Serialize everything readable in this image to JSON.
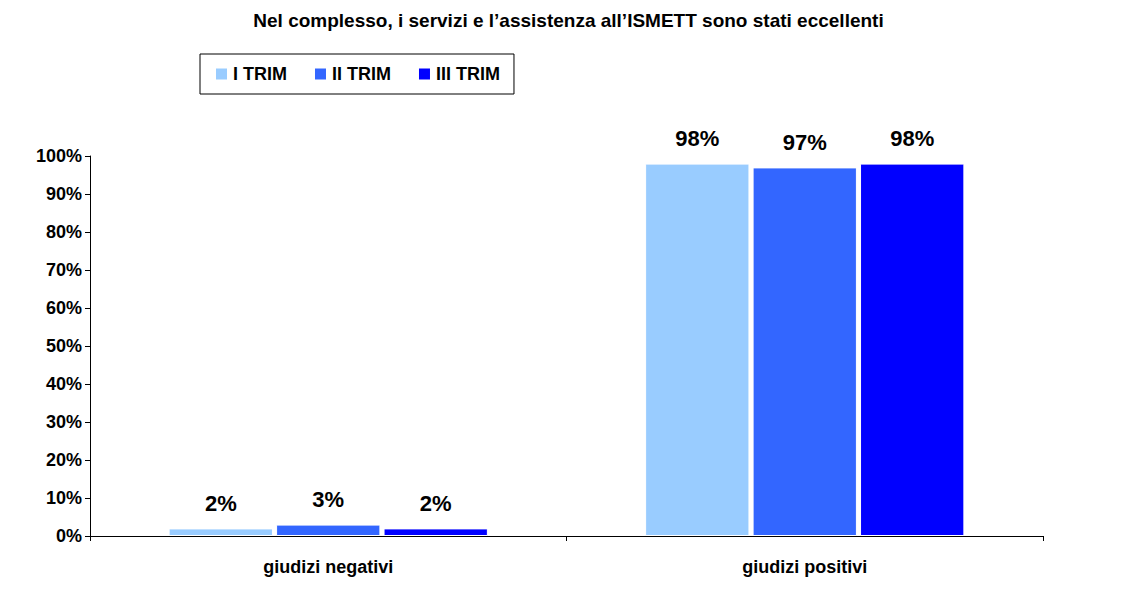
{
  "chart_data": {
    "type": "bar",
    "title": "Nel complesso, i servizi e l’assistenza all’ISMETT sono stati eccellenti",
    "categories": [
      "giudizi negativi",
      "giudizi positivi"
    ],
    "series": [
      {
        "name": "I TRIM",
        "color": "#99ccff",
        "values": [
          2,
          98
        ],
        "value_labels": [
          "2%",
          "98%"
        ]
      },
      {
        "name": "II TRIM",
        "color": "#3366ff",
        "values": [
          3,
          97
        ],
        "value_labels": [
          "3%",
          "97%"
        ]
      },
      {
        "name": "III TRIM",
        "color": "#0000ff",
        "values": [
          2,
          98
        ],
        "value_labels": [
          "2%",
          "98%"
        ]
      }
    ],
    "ylim": [
      0,
      100
    ],
    "yticks": [
      {
        "value": 0,
        "label": "0%"
      },
      {
        "value": 10,
        "label": "10%"
      },
      {
        "value": 20,
        "label": "20%"
      },
      {
        "value": 30,
        "label": "30%"
      },
      {
        "value": 40,
        "label": "40%"
      },
      {
        "value": 50,
        "label": "50%"
      },
      {
        "value": 60,
        "label": "60%"
      },
      {
        "value": 70,
        "label": "70%"
      },
      {
        "value": 80,
        "label": "80%"
      },
      {
        "value": 90,
        "label": "90%"
      },
      {
        "value": 100,
        "label": "100%"
      }
    ],
    "grid": false,
    "legend": "top-left",
    "data_labels": true
  }
}
